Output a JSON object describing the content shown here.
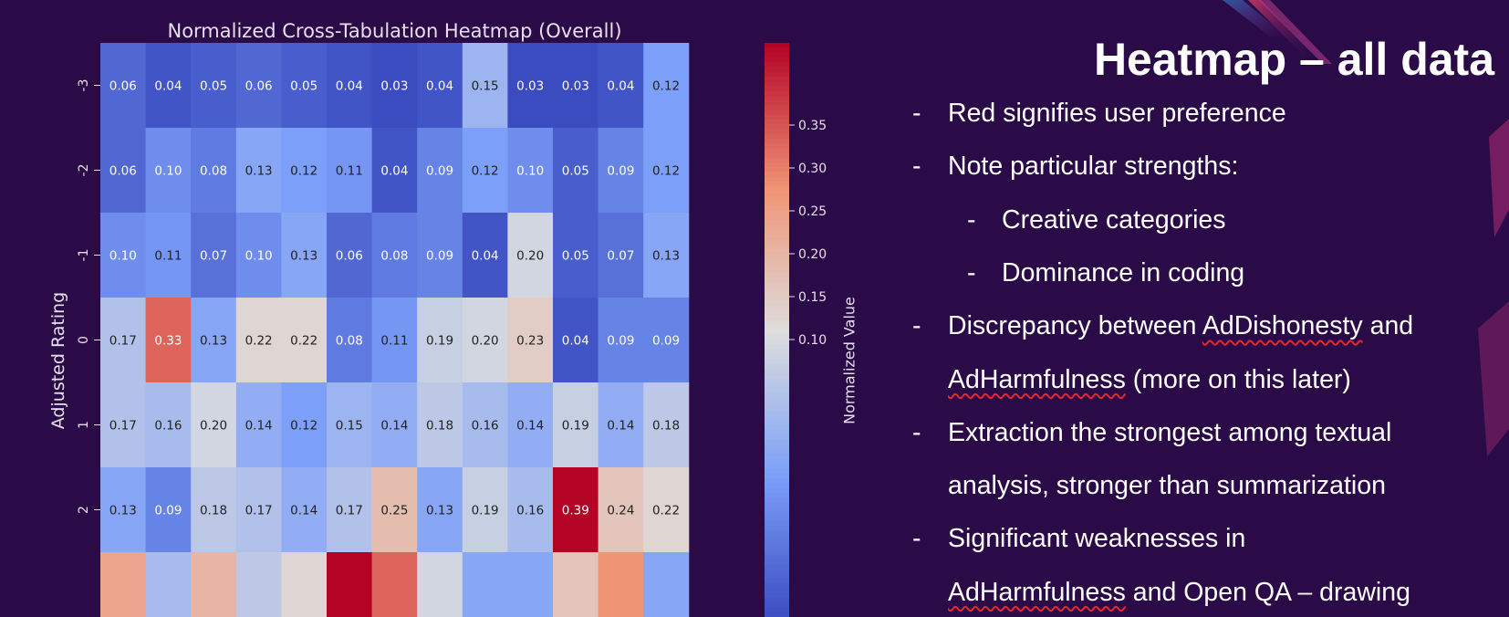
{
  "slide": {
    "title": "Heatmap – all data",
    "bullets": [
      {
        "level": 1,
        "dash": "-",
        "segments": [
          {
            "text": "Red signifies user preference",
            "squiggle": false
          }
        ]
      },
      {
        "level": 1,
        "dash": "-",
        "segments": [
          {
            "text": "Note particular strengths:",
            "squiggle": false
          }
        ]
      },
      {
        "level": 2,
        "dash": "-",
        "segments": [
          {
            "text": "Creative categories",
            "squiggle": false
          }
        ]
      },
      {
        "level": 2,
        "dash": "-",
        "segments": [
          {
            "text": "Dominance in coding",
            "squiggle": false
          }
        ]
      },
      {
        "level": 1,
        "dash": "-",
        "segments": [
          {
            "text": "Discrepancy between ",
            "squiggle": false
          },
          {
            "text": "AdDishonesty",
            "squiggle": true
          },
          {
            "text": " and",
            "squiggle": false
          }
        ]
      },
      {
        "level": 0,
        "dash": "",
        "segments": [
          {
            "text": "AdHarmfulness",
            "squiggle": true
          },
          {
            "text": " (more on this later)",
            "squiggle": false
          }
        ]
      },
      {
        "level": 1,
        "dash": "-",
        "segments": [
          {
            "text": "Extraction the strongest among textual",
            "squiggle": false
          }
        ]
      },
      {
        "level": 0,
        "dash": "",
        "segments": [
          {
            "text": "analysis, stronger than summarization",
            "squiggle": false
          }
        ]
      },
      {
        "level": 1,
        "dash": "-",
        "segments": [
          {
            "text": "Significant weaknesses in",
            "squiggle": false
          }
        ]
      },
      {
        "level": 0,
        "dash": "",
        "segments": [
          {
            "text": "AdHarmfulness",
            "squiggle": true
          },
          {
            "text": " and Open QA – drawing",
            "squiggle": false
          }
        ]
      }
    ]
  },
  "colors": {
    "background": "#2a0a47",
    "text": "#ffffff",
    "axis_text": "#e6e0ef",
    "squiggle": "#e0282e",
    "colormap": "coolwarm"
  },
  "chart_data": {
    "type": "heatmap",
    "title": "Normalized Cross-Tabulation Heatmap (Overall)",
    "ylabel": "Adjusted Rating",
    "xlabel": "",
    "colorbar_label": "Normalized Value",
    "colorbar_range": [
      0.03,
      0.39
    ],
    "colorbar_ticks": [
      "0.10",
      "0.15",
      "0.20",
      "0.25",
      "0.30",
      "0.35"
    ],
    "row_labels": [
      "-3",
      "-2",
      "-1",
      "0",
      "1",
      "2"
    ],
    "values": [
      [
        0.06,
        0.04,
        0.05,
        0.06,
        0.05,
        0.04,
        0.03,
        0.04,
        0.15,
        0.03,
        0.03,
        0.04,
        0.12
      ],
      [
        0.06,
        0.1,
        0.08,
        0.13,
        0.12,
        0.11,
        0.04,
        0.09,
        0.12,
        0.1,
        0.05,
        0.09,
        0.12
      ],
      [
        0.1,
        0.11,
        0.07,
        0.1,
        0.13,
        0.06,
        0.08,
        0.09,
        0.04,
        0.2,
        0.05,
        0.07,
        0.13
      ],
      [
        0.17,
        0.33,
        0.13,
        0.22,
        0.22,
        0.08,
        0.11,
        0.19,
        0.2,
        0.23,
        0.04,
        0.09,
        0.09
      ],
      [
        0.17,
        0.16,
        0.2,
        0.14,
        0.12,
        0.15,
        0.14,
        0.18,
        0.16,
        0.14,
        0.19,
        0.14,
        0.18
      ],
      [
        0.13,
        0.09,
        0.18,
        0.17,
        0.14,
        0.17,
        0.25,
        0.13,
        0.19,
        0.16,
        0.39,
        0.24,
        0.22
      ]
    ],
    "partial_row_unlabeled": [
      0.28,
      0.16,
      0.26,
      0.18,
      0.22,
      0.4,
      0.33,
      0.2,
      0.13,
      0.13,
      0.24,
      0.3,
      0.13
    ]
  }
}
